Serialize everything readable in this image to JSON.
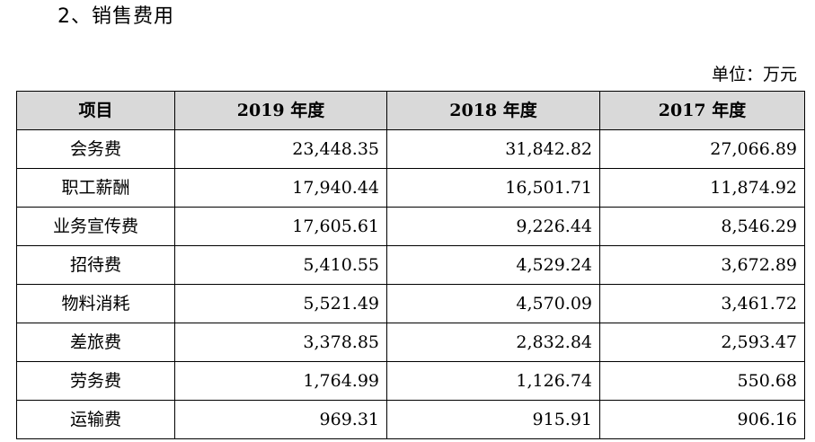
{
  "heading": "2、销售费用",
  "unit_label": "单位：万元",
  "table": {
    "headers": [
      "项目",
      "2019 年度",
      "2018 年度",
      "2017 年度"
    ],
    "rows": [
      {
        "item": "会务费",
        "y2019": "23,448.35",
        "y2018": "31,842.82",
        "y2017": "27,066.89"
      },
      {
        "item": "职工薪酬",
        "y2019": "17,940.44",
        "y2018": "16,501.71",
        "y2017": "11,874.92"
      },
      {
        "item": "业务宣传费",
        "y2019": "17,605.61",
        "y2018": "9,226.44",
        "y2017": "8,546.29"
      },
      {
        "item": "招待费",
        "y2019": "5,410.55",
        "y2018": "4,529.24",
        "y2017": "3,672.89"
      },
      {
        "item": "物料消耗",
        "y2019": "5,521.49",
        "y2018": "4,570.09",
        "y2017": "3,461.72"
      },
      {
        "item": "差旅费",
        "y2019": "3,378.85",
        "y2018": "2,832.84",
        "y2017": "2,593.47"
      },
      {
        "item": "劳务费",
        "y2019": "1,764.99",
        "y2018": "1,126.74",
        "y2017": "550.68"
      },
      {
        "item": "运输费",
        "y2019": "969.31",
        "y2018": "915.91",
        "y2017": "906.16"
      }
    ]
  },
  "header_bg": "#d9d9d9"
}
